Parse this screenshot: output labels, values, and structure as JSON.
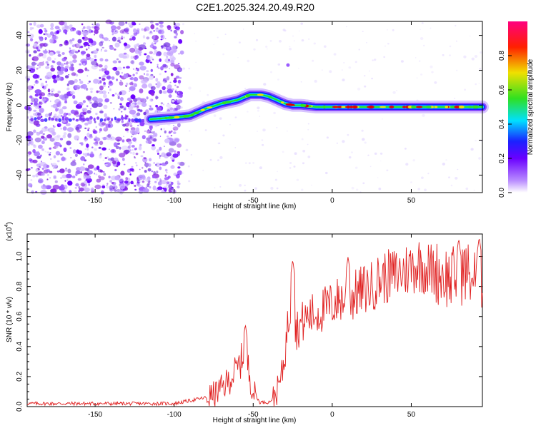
{
  "title": "C2E1.2025.324.20.49.R20",
  "colors": {
    "snr_line": "#e02020",
    "axis": "#000000",
    "purple": "#8a2be2",
    "blue": "#1a22ff",
    "cyan": "#00e0ff",
    "green": "#30e020",
    "yellow": "#f0e000",
    "red": "#e00000",
    "magenta": "#ff0080"
  },
  "chart_data": [
    {
      "type": "heatmap",
      "name": "spectrogram",
      "xlabel": "Height of straight line (km)",
      "ylabel": "Frequency (Hz)",
      "xlim": [
        -193,
        95
      ],
      "ylim": [
        -50,
        48
      ],
      "xticks": [
        -150,
        -100,
        -50,
        0,
        50
      ],
      "yticks": [
        -40,
        -20,
        0,
        20,
        40
      ],
      "ridge": {
        "x": [
          -115,
          -100,
          -90,
          -80,
          -70,
          -60,
          -52,
          -45,
          -40,
          -35,
          -30,
          -25,
          -20,
          -10,
          0,
          10,
          30,
          50,
          70,
          95
        ],
        "y": [
          -8,
          -7,
          -6,
          -2,
          1,
          3,
          6,
          6,
          5,
          3,
          1,
          0,
          0,
          -1,
          -1,
          -1,
          -1,
          -1,
          -1,
          -1
        ]
      },
      "noise_edge_x": -95,
      "colorbar": {
        "label": "Normalized spectral amplitude",
        "range": [
          0.0,
          1.0
        ],
        "ticks": [
          0.0,
          0.2,
          0.4,
          0.6,
          0.8
        ]
      }
    },
    {
      "type": "line",
      "name": "snr",
      "xlabel": "Height of straight line (km)",
      "ylabel": "SNR (10 * v/v)",
      "multiplier": "(x10",
      "multiplier_exp": "4",
      "multiplier_close": ")",
      "xlim": [
        -193,
        95
      ],
      "ylim": [
        0,
        1.15
      ],
      "xticks": [
        -150,
        -100,
        -50,
        0,
        50
      ],
      "yticks": [
        0.0,
        0.2,
        0.4,
        0.6,
        0.8,
        1.0
      ],
      "envelope": {
        "x": [
          -193,
          -150,
          -110,
          -100,
          -95,
          -90,
          -85,
          -80,
          -75,
          -70,
          -65,
          -60,
          -57,
          -55,
          -53,
          -50,
          -46,
          -40,
          -38,
          -35,
          -32,
          -30,
          -28,
          -26,
          -24,
          -20,
          -15,
          -10,
          -5,
          0,
          5,
          10,
          15,
          20,
          25,
          30,
          40,
          45,
          50,
          55,
          60,
          65,
          70,
          75,
          80,
          85,
          90,
          95
        ],
        "y": [
          0.02,
          0.02,
          0.02,
          0.02,
          0.03,
          0.04,
          0.05,
          0.06,
          0.08,
          0.12,
          0.18,
          0.25,
          0.32,
          0.38,
          0.25,
          0.1,
          0.03,
          0.03,
          0.05,
          0.1,
          0.2,
          0.35,
          0.55,
          0.7,
          0.5,
          0.55,
          0.6,
          0.62,
          0.65,
          0.68,
          0.72,
          0.7,
          0.75,
          0.78,
          0.8,
          0.85,
          0.88,
          0.9,
          0.93,
          0.95,
          0.92,
          0.9,
          0.88,
          0.85,
          0.88,
          0.9,
          0.85,
          0.85
        ]
      },
      "peaks": [
        {
          "x": -55,
          "y": 0.55
        },
        {
          "x": -25,
          "y": 0.98
        },
        {
          "x": 10,
          "y": 1.0
        },
        {
          "x": 80,
          "y": 1.12
        },
        {
          "x": 93,
          "y": 1.13
        }
      ]
    }
  ]
}
